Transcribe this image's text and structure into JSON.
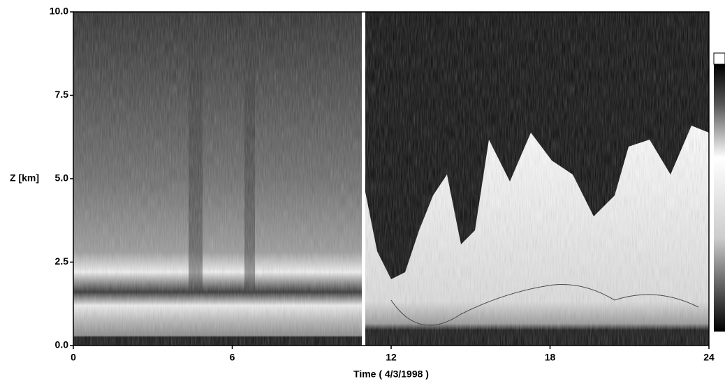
{
  "chart_data": {
    "type": "heatmap",
    "xlabel": "Time ( 4/3/1998 )",
    "ylabel": "Z [km]",
    "xlim": [
      0,
      24
    ],
    "xticks": [
      0,
      6,
      12,
      18,
      24
    ],
    "ylim": [
      0,
      10
    ],
    "yticks": [
      {
        "value": 0,
        "label": "0.0"
      },
      2.5,
      {
        "value": 5,
        "label": "5.0"
      },
      7.5,
      {
        "value": 10,
        "label": "10.0"
      }
    ]
  }
}
